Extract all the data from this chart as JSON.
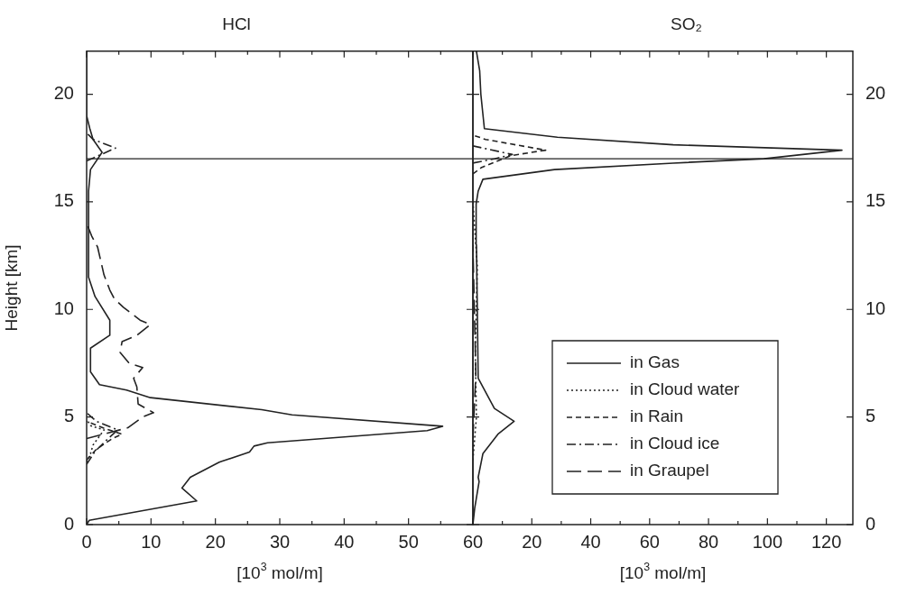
{
  "chart_data": [
    {
      "type": "line",
      "title": "HCl",
      "xlabel": "[10$^{3}$ mol/m]",
      "ylabel": "Height [km]",
      "xlim": [
        0,
        60
      ],
      "xticks": [
        0,
        {
          "value": 5,
          "label": null
        },
        10,
        {
          "value": 15,
          "label": null
        },
        20,
        {
          "value": 25,
          "label": null
        },
        30,
        {
          "value": 35,
          "label": null
        },
        40,
        {
          "value": 45,
          "label": null
        },
        50,
        {
          "value": 55,
          "label": null
        },
        60
      ],
      "ylim": [
        0,
        22
      ],
      "yticks": [
        0,
        5,
        10,
        15,
        20
      ],
      "grid": false,
      "legend": false,
      "marker": "none",
      "ref_lines": [
        {
          "axis": "y",
          "value": 17
        }
      ],
      "series": [
        {
          "color": "#222222",
          "line_style": "solid",
          "x": [
            0,
            0.4,
            17.1,
            14.8,
            16.1,
            20.6,
            21.1,
            25.3,
            26.0,
            28.1,
            52.9,
            55.3,
            31.9,
            27.2,
            9.9,
            6.2,
            2.0,
            0.6,
            0.6,
            3.6,
            3.6,
            1.3,
            0.3,
            0.3,
            0.6,
            2.4,
            1.0,
            0.5,
            0,
            0
          ],
          "values": [
            0,
            0.2,
            1.1,
            1.7,
            2.2,
            2.9,
            2.95,
            3.37,
            3.65,
            3.8,
            4.37,
            4.57,
            5.1,
            5.34,
            5.9,
            6.25,
            6.5,
            7.1,
            8.2,
            8.8,
            9.5,
            10.6,
            11.5,
            15.5,
            16.5,
            17.3,
            17.9,
            18.4,
            19,
            22
          ]
        },
        {
          "color": "#222222",
          "line_style": "dotted",
          "x": [
            0,
            0.6,
            1.0,
            2.7,
            0.6,
            0
          ],
          "values": [
            2.9,
            3.3,
            3.7,
            4.4,
            4.6,
            4.9
          ]
        },
        {
          "color": "#222222",
          "line_style": "dashed",
          "x": [
            0,
            1.5,
            4.0,
            5.5,
            2.5,
            0
          ],
          "values": [
            3.0,
            3.5,
            4.0,
            4.2,
            4.5,
            4.8
          ]
        },
        {
          "color": "#222222",
          "line_style": "dashdot",
          "x": [
            0,
            1.3,
            3.0,
            4.8,
            1.5,
            0,
            null,
            0,
            4.5,
            1.0,
            0
          ],
          "values": [
            2.8,
            3.4,
            3.9,
            4.4,
            4.8,
            5.2,
            null,
            16.9,
            17.5,
            17.9,
            18.2
          ]
        },
        {
          "color": "#222222",
          "line_style": "longdash",
          "x": [
            0,
            6.4,
            8.7,
            10.4,
            8.0,
            7.8,
            7.3,
            8.7,
            6.6,
            5.2,
            5.5,
            7.8,
            9.9,
            8.3,
            5.7,
            4.3,
            3.6,
            2.7,
            1.7,
            0.8,
            0
          ],
          "values": [
            4.0,
            4.5,
            5.0,
            5.2,
            5.6,
            6.4,
            6.8,
            7.3,
            7.5,
            8.0,
            8.5,
            8.8,
            9.3,
            9.5,
            10.1,
            10.5,
            10.9,
            11.6,
            12.9,
            13.4,
            14.0
          ]
        }
      ]
    },
    {
      "type": "line",
      "title": "SO₂",
      "xlabel": "[10$^{3}$ mol/m]",
      "xlim": [
        0,
        129
      ],
      "xticks": [
        {
          "value": 0,
          "label": null
        },
        {
          "value": 10,
          "label": null
        },
        20,
        {
          "value": 30,
          "label": null
        },
        40,
        {
          "value": 50,
          "label": null
        },
        60,
        {
          "value": 70,
          "label": null
        },
        80,
        {
          "value": 90,
          "label": null
        },
        100,
        {
          "value": 110,
          "label": null
        },
        120
      ],
      "ylim": [
        0,
        22
      ],
      "yticks": [
        0,
        5,
        10,
        15,
        20
      ],
      "grid": false,
      "legend": "bottom right",
      "marker": "none",
      "ref_lines": [
        {
          "axis": "y",
          "value": 17
        }
      ],
      "series": [
        {
          "name": "in Gas",
          "color": "#222222",
          "line_style": "solid",
          "x": [
            0,
            0.6,
            2.1,
            1.8,
            3.4,
            8.5,
            14,
            7.3,
            1.8,
            1.5,
            1.2,
            1.1,
            1.8,
            3.4,
            27.7,
            68,
            98.8,
            125.3,
            68,
            28.7,
            3.9,
            2.7,
            2.3,
            1.2
          ],
          "values": [
            0,
            0.75,
            2.0,
            2.2,
            3.3,
            4.2,
            4.8,
            5.4,
            6.8,
            10,
            13,
            14.9,
            15.5,
            16.05,
            16.5,
            16.8,
            17.0,
            17.4,
            17.65,
            18.0,
            18.4,
            20,
            21.1,
            22
          ]
        },
        {
          "name": "in Cloud water",
          "color": "#222222",
          "line_style": "dotted",
          "x": [
            0,
            1.2,
            0.8,
            1.5,
            0
          ],
          "values": [
            3,
            5,
            8,
            12,
            15
          ]
        },
        {
          "name": "in Rain",
          "color": "#222222",
          "line_style": "dashed",
          "x": [
            0,
            3.0,
            13,
            24.7,
            4.3,
            0
          ],
          "values": [
            16.3,
            16.6,
            17.15,
            17.4,
            17.9,
            18.1
          ]
        },
        {
          "name": "in Cloud ice",
          "color": "#222222",
          "line_style": "dashdot",
          "x": [
            0,
            7.3,
            13.4,
            0
          ],
          "values": [
            16.8,
            17.0,
            17.2,
            17.6
          ]
        },
        {
          "name": "in Graupel",
          "color": "#222222",
          "line_style": "longdash",
          "x": [
            0,
            1.0,
            0.5,
            0
          ],
          "values": [
            4,
            7,
            10,
            13
          ]
        }
      ]
    }
  ]
}
